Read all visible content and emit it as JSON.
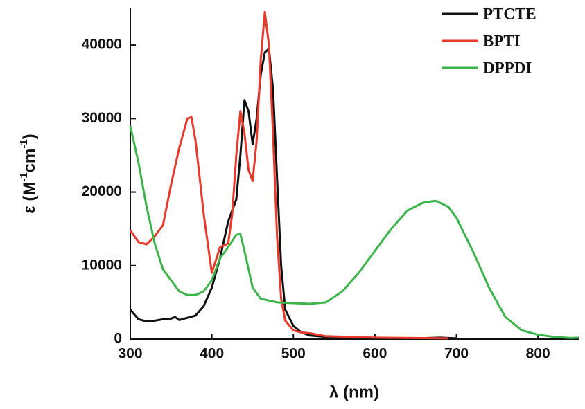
{
  "chart_data": {
    "type": "line",
    "x_label": "λ (nm)",
    "y_label_parts": [
      "ε (M",
      "-1",
      "cm",
      "-1",
      ")"
    ],
    "xlim": [
      300,
      850
    ],
    "xticks": [
      300,
      400,
      500,
      600,
      700,
      800
    ],
    "ylim": [
      0,
      45000
    ],
    "yticks": [
      0,
      10000,
      20000,
      30000,
      40000
    ],
    "legend": "upper right",
    "series": [
      {
        "name": "PTCTE",
        "color": "#111111",
        "x": [
          300,
          310,
          320,
          330,
          340,
          350,
          355,
          360,
          370,
          380,
          390,
          400,
          410,
          420,
          430,
          435,
          440,
          445,
          450,
          455,
          460,
          465,
          470,
          475,
          480,
          485,
          490,
          500,
          510,
          520,
          540,
          560,
          600,
          650,
          680,
          700
        ],
        "values": [
          4000,
          2700,
          2400,
          2500,
          2700,
          2800,
          3000,
          2600,
          2900,
          3200,
          4500,
          7000,
          11000,
          16000,
          19000,
          25000,
          32500,
          31000,
          26500,
          30000,
          36000,
          39000,
          39500,
          34000,
          22000,
          10000,
          4000,
          1800,
          900,
          500,
          300,
          200,
          150,
          100,
          200,
          100
        ]
      },
      {
        "name": "BPTI",
        "color": "#e8392b",
        "x": [
          300,
          310,
          320,
          330,
          340,
          350,
          360,
          365,
          370,
          375,
          380,
          390,
          400,
          410,
          420,
          425,
          430,
          435,
          440,
          445,
          450,
          455,
          460,
          465,
          470,
          475,
          480,
          485,
          490,
          500,
          510,
          520,
          540,
          600,
          690
        ],
        "values": [
          14800,
          13200,
          12900,
          14000,
          15500,
          21000,
          26000,
          28000,
          30000,
          30200,
          27000,
          17000,
          9000,
          12500,
          13000,
          17000,
          25000,
          31000,
          28000,
          23000,
          21500,
          27000,
          38000,
          44500,
          40000,
          28000,
          14000,
          5500,
          2500,
          1200,
          900,
          800,
          400,
          200,
          100
        ]
      },
      {
        "name": "DPPDI",
        "color": "#3cb44b",
        "x": [
          300,
          310,
          320,
          330,
          340,
          350,
          360,
          370,
          380,
          390,
          400,
          410,
          420,
          430,
          435,
          440,
          450,
          460,
          480,
          500,
          520,
          540,
          560,
          580,
          600,
          620,
          640,
          660,
          675,
          690,
          700,
          720,
          740,
          760,
          780,
          800,
          820,
          840,
          850
        ],
        "values": [
          29000,
          24000,
          18000,
          13000,
          9500,
          8000,
          6500,
          6000,
          6000,
          6500,
          8000,
          11000,
          12500,
          14200,
          14300,
          12000,
          7000,
          5500,
          5000,
          4900,
          4800,
          5000,
          6500,
          9000,
          12000,
          15000,
          17500,
          18600,
          18800,
          18000,
          16500,
          12000,
          7000,
          3000,
          1200,
          600,
          300,
          150,
          200
        ]
      }
    ]
  }
}
